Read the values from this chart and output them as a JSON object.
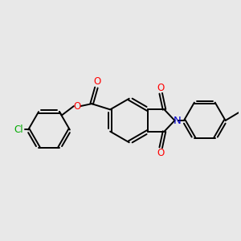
{
  "background_color": "#e8e8e8",
  "bond_color": "#000000",
  "bond_width": 1.4,
  "figsize": [
    3.0,
    3.0
  ],
  "dpi": 100,
  "atom_colors": {
    "O": "#ff0000",
    "N": "#0000cc",
    "Cl": "#00aa00"
  },
  "font_size": 8.5
}
